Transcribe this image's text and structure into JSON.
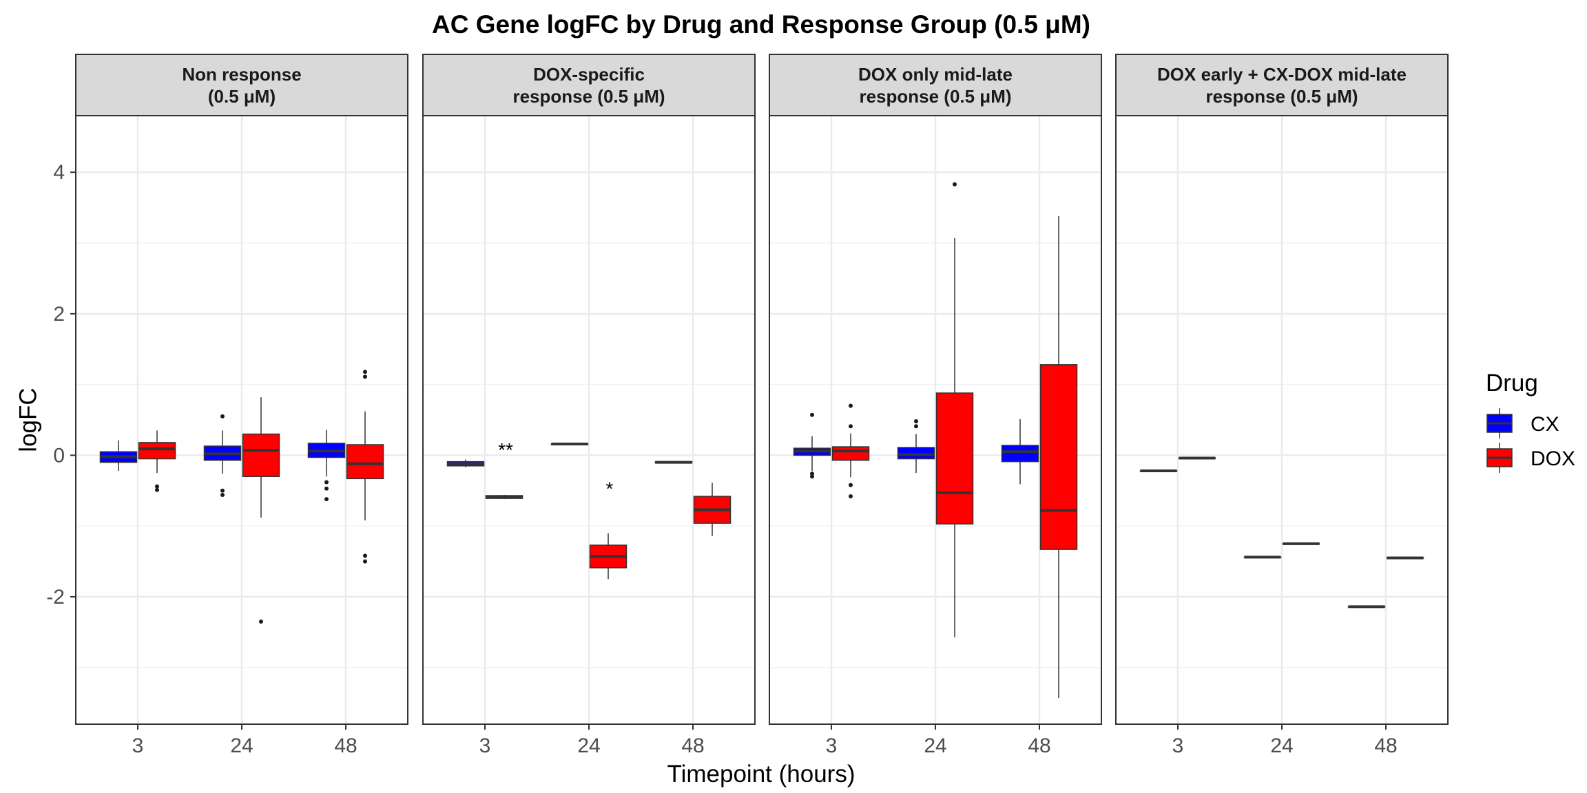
{
  "chart_data": {
    "type": "box",
    "title": "AC Gene logFC by Drug and Response Group (0.5 μM)",
    "xlabel": "Timepoint (hours)",
    "ylabel": "logFC",
    "categories": [
      "3",
      "24",
      "48"
    ],
    "ylim": [
      -3.8,
      4.8
    ],
    "yticks": [
      -2,
      0,
      2,
      4
    ],
    "ytick_labels": [
      "-2",
      "0",
      "2",
      "4"
    ],
    "grid": true,
    "legend": {
      "title": "Drug",
      "position": "right",
      "items": [
        {
          "name": "CX",
          "color": "#0000FF"
        },
        {
          "name": "DOX",
          "color": "#FF0000"
        }
      ]
    },
    "panels": [
      {
        "label": [
          "Non response",
          "(0.5 μM)"
        ],
        "boxes": [
          {
            "time": "3",
            "drug": "CX",
            "min": -0.22,
            "q1": -0.1,
            "median": -0.02,
            "q3": 0.05,
            "max": 0.21,
            "outliers": []
          },
          {
            "time": "3",
            "drug": "DOX",
            "min": -0.25,
            "q1": -0.05,
            "median": 0.09,
            "q3": 0.18,
            "max": 0.35,
            "outliers": [
              -0.44,
              -0.49
            ]
          },
          {
            "time": "24",
            "drug": "CX",
            "min": -0.26,
            "q1": -0.07,
            "median": 0.02,
            "q3": 0.13,
            "max": 0.35,
            "outliers": [
              0.55,
              -0.5,
              -0.56
            ]
          },
          {
            "time": "24",
            "drug": "DOX",
            "min": -0.88,
            "q1": -0.3,
            "median": 0.07,
            "q3": 0.3,
            "max": 0.82,
            "outliers": [
              -2.35
            ]
          },
          {
            "time": "48",
            "drug": "CX",
            "min": -0.3,
            "q1": -0.03,
            "median": 0.06,
            "q3": 0.17,
            "max": 0.36,
            "outliers": [
              -0.38,
              -0.47,
              -0.62
            ]
          },
          {
            "time": "48",
            "drug": "DOX",
            "min": -0.92,
            "q1": -0.33,
            "median": -0.12,
            "q3": 0.15,
            "max": 0.62,
            "outliers": [
              1.18,
              1.11,
              -1.42,
              -1.5
            ]
          }
        ],
        "annotations": []
      },
      {
        "label": [
          "DOX-specific",
          "response (0.5 μM)"
        ],
        "boxes": [
          {
            "time": "3",
            "drug": "CX",
            "min": -0.17,
            "q1": -0.15,
            "median": -0.12,
            "q3": -0.09,
            "max": -0.06,
            "outliers": []
          },
          {
            "time": "3",
            "drug": "DOX",
            "min": -0.62,
            "q1": -0.61,
            "median": -0.59,
            "q3": -0.57,
            "max": -0.56,
            "outliers": []
          },
          {
            "time": "24",
            "drug": "CX",
            "min": 0.15,
            "q1": 0.15,
            "median": 0.16,
            "q3": 0.16,
            "max": 0.16,
            "outliers": []
          },
          {
            "time": "24",
            "drug": "DOX",
            "min": -1.75,
            "q1": -1.59,
            "median": -1.43,
            "q3": -1.27,
            "max": -1.1,
            "outliers": []
          },
          {
            "time": "48",
            "drug": "CX",
            "min": -0.11,
            "q1": -0.11,
            "median": -0.1,
            "q3": -0.09,
            "max": -0.09,
            "outliers": []
          },
          {
            "time": "48",
            "drug": "DOX",
            "min": -1.14,
            "q1": -0.96,
            "median": -0.77,
            "q3": -0.58,
            "max": -0.39,
            "outliers": []
          }
        ],
        "annotations": [
          {
            "text": "**",
            "time": "3",
            "value": 0.08
          },
          {
            "text": "*",
            "time": "24",
            "value": -0.47
          }
        ]
      },
      {
        "label": [
          "DOX only mid-late",
          "response (0.5 μM)"
        ],
        "boxes": [
          {
            "time": "3",
            "drug": "CX",
            "min": -0.22,
            "q1": 0.0,
            "median": 0.06,
            "q3": 0.1,
            "max": 0.27,
            "outliers": [
              0.57,
              -0.26,
              -0.3
            ]
          },
          {
            "time": "3",
            "drug": "DOX",
            "min": -0.31,
            "q1": -0.07,
            "median": 0.06,
            "q3": 0.12,
            "max": 0.31,
            "outliers": [
              0.7,
              0.41,
              -0.42,
              -0.58
            ]
          },
          {
            "time": "24",
            "drug": "CX",
            "min": -0.25,
            "q1": -0.05,
            "median": 0.01,
            "q3": 0.11,
            "max": 0.3,
            "outliers": [
              0.48,
              0.41
            ]
          },
          {
            "time": "24",
            "drug": "DOX",
            "min": -2.57,
            "q1": -0.97,
            "median": -0.53,
            "q3": 0.88,
            "max": 3.07,
            "outliers": [
              3.83
            ]
          },
          {
            "time": "48",
            "drug": "CX",
            "min": -0.41,
            "q1": -0.09,
            "median": 0.05,
            "q3": 0.14,
            "max": 0.51,
            "outliers": []
          },
          {
            "time": "48",
            "drug": "DOX",
            "min": -3.43,
            "q1": -1.33,
            "median": -0.78,
            "q3": 1.28,
            "max": 3.38,
            "outliers": []
          }
        ],
        "annotations": []
      },
      {
        "label": [
          "DOX early + CX-DOX mid-late",
          "response (0.5 μM)"
        ],
        "boxes": [
          {
            "time": "3",
            "drug": "CX",
            "min": -0.22,
            "q1": -0.22,
            "median": -0.22,
            "q3": -0.22,
            "max": -0.22,
            "outliers": []
          },
          {
            "time": "3",
            "drug": "DOX",
            "min": -0.04,
            "q1": -0.04,
            "median": -0.04,
            "q3": -0.04,
            "max": -0.04,
            "outliers": []
          },
          {
            "time": "24",
            "drug": "CX",
            "min": -1.44,
            "q1": -1.44,
            "median": -1.44,
            "q3": -1.44,
            "max": -1.44,
            "outliers": []
          },
          {
            "time": "24",
            "drug": "DOX",
            "min": -1.25,
            "q1": -1.25,
            "median": -1.25,
            "q3": -1.25,
            "max": -1.25,
            "outliers": []
          },
          {
            "time": "48",
            "drug": "CX",
            "min": -2.14,
            "q1": -2.14,
            "median": -2.14,
            "q3": -2.14,
            "max": -2.14,
            "outliers": []
          },
          {
            "time": "48",
            "drug": "DOX",
            "min": -1.45,
            "q1": -1.45,
            "median": -1.45,
            "q3": -1.45,
            "max": -1.45,
            "outliers": []
          }
        ],
        "annotations": []
      }
    ]
  }
}
